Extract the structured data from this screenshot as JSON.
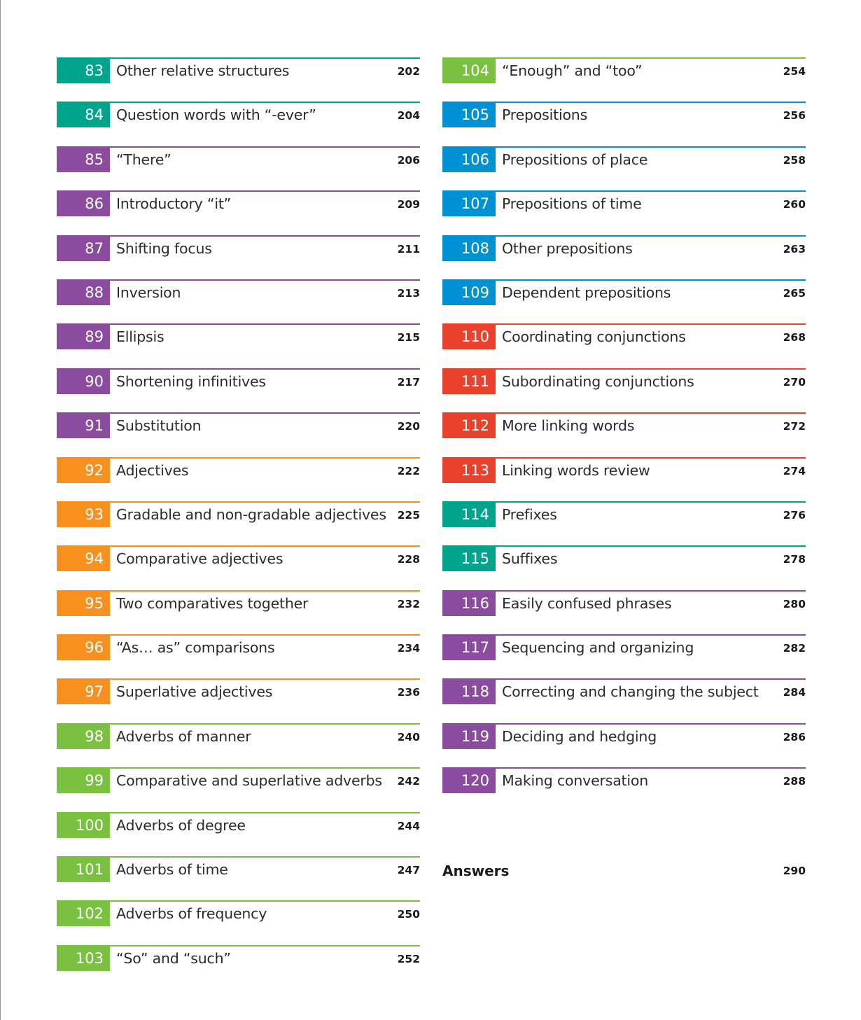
{
  "colors": {
    "teal": "#00a48c",
    "purple": "#8b4b9e",
    "orange": "#f7901e",
    "green": "#7ac142",
    "blue": "#0091d5",
    "red": "#e8412c"
  },
  "left_column": [
    {
      "num": "83",
      "title": "Other relative structures",
      "page": "202",
      "color": "teal"
    },
    {
      "num": "84",
      "title": "Question words with “-ever”",
      "page": "204",
      "color": "teal"
    },
    {
      "num": "85",
      "title": "“There”",
      "page": "206",
      "color": "purple"
    },
    {
      "num": "86",
      "title": "Introductory “it”",
      "page": "209",
      "color": "purple"
    },
    {
      "num": "87",
      "title": "Shifting focus",
      "page": "211",
      "color": "purple"
    },
    {
      "num": "88",
      "title": "Inversion",
      "page": "213",
      "color": "purple"
    },
    {
      "num": "89",
      "title": "Ellipsis",
      "page": "215",
      "color": "purple"
    },
    {
      "num": "90",
      "title": "Shortening infinitives",
      "page": "217",
      "color": "purple"
    },
    {
      "num": "91",
      "title": "Substitution",
      "page": "220",
      "color": "purple"
    },
    {
      "num": "92",
      "title": "Adjectives",
      "page": "222",
      "color": "orange"
    },
    {
      "num": "93",
      "title": "Gradable and non-gradable adjectives",
      "page": "225",
      "color": "orange"
    },
    {
      "num": "94",
      "title": "Comparative adjectives",
      "page": "228",
      "color": "orange"
    },
    {
      "num": "95",
      "title": "Two comparatives together",
      "page": "232",
      "color": "orange"
    },
    {
      "num": "96",
      "title": "“As… as” comparisons",
      "page": "234",
      "color": "orange"
    },
    {
      "num": "97",
      "title": "Superlative adjectives",
      "page": "236",
      "color": "orange"
    },
    {
      "num": "98",
      "title": "Adverbs of manner",
      "page": "240",
      "color": "green"
    },
    {
      "num": "99",
      "title": "Comparative and superlative adverbs",
      "page": "242",
      "color": "green"
    },
    {
      "num": "100",
      "title": "Adverbs of degree",
      "page": "244",
      "color": "green"
    },
    {
      "num": "101",
      "title": "Adverbs of time",
      "page": "247",
      "color": "green"
    },
    {
      "num": "102",
      "title": "Adverbs of frequency",
      "page": "250",
      "color": "green"
    },
    {
      "num": "103",
      "title": "“So” and “such”",
      "page": "252",
      "color": "green"
    }
  ],
  "right_column": [
    {
      "num": "104",
      "title": "“Enough” and “too”",
      "page": "254",
      "color": "green"
    },
    {
      "num": "105",
      "title": "Prepositions",
      "page": "256",
      "color": "blue"
    },
    {
      "num": "106",
      "title": "Prepositions of place",
      "page": "258",
      "color": "blue"
    },
    {
      "num": "107",
      "title": "Prepositions of time",
      "page": "260",
      "color": "blue"
    },
    {
      "num": "108",
      "title": "Other prepositions",
      "page": "263",
      "color": "blue"
    },
    {
      "num": "109",
      "title": "Dependent prepositions",
      "page": "265",
      "color": "blue"
    },
    {
      "num": "110",
      "title": "Coordinating conjunctions",
      "page": "268",
      "color": "red"
    },
    {
      "num": "111",
      "title": "Subordinating conjunctions",
      "page": "270",
      "color": "red"
    },
    {
      "num": "112",
      "title": "More linking words",
      "page": "272",
      "color": "red"
    },
    {
      "num": "113",
      "title": "Linking words review",
      "page": "274",
      "color": "red"
    },
    {
      "num": "114",
      "title": "Prefixes",
      "page": "276",
      "color": "teal"
    },
    {
      "num": "115",
      "title": "Suffixes",
      "page": "278",
      "color": "teal"
    },
    {
      "num": "116",
      "title": "Easily confused phrases",
      "page": "280",
      "color": "purple"
    },
    {
      "num": "117",
      "title": "Sequencing and organizing",
      "page": "282",
      "color": "purple"
    },
    {
      "num": "118",
      "title": "Correcting and changing the subject",
      "page": "284",
      "color": "purple"
    },
    {
      "num": "119",
      "title": "Deciding and hedging",
      "page": "286",
      "color": "purple"
    },
    {
      "num": "120",
      "title": "Making conversation",
      "page": "288",
      "color": "purple"
    }
  ],
  "answers": {
    "label": "Answers",
    "page": "290"
  }
}
